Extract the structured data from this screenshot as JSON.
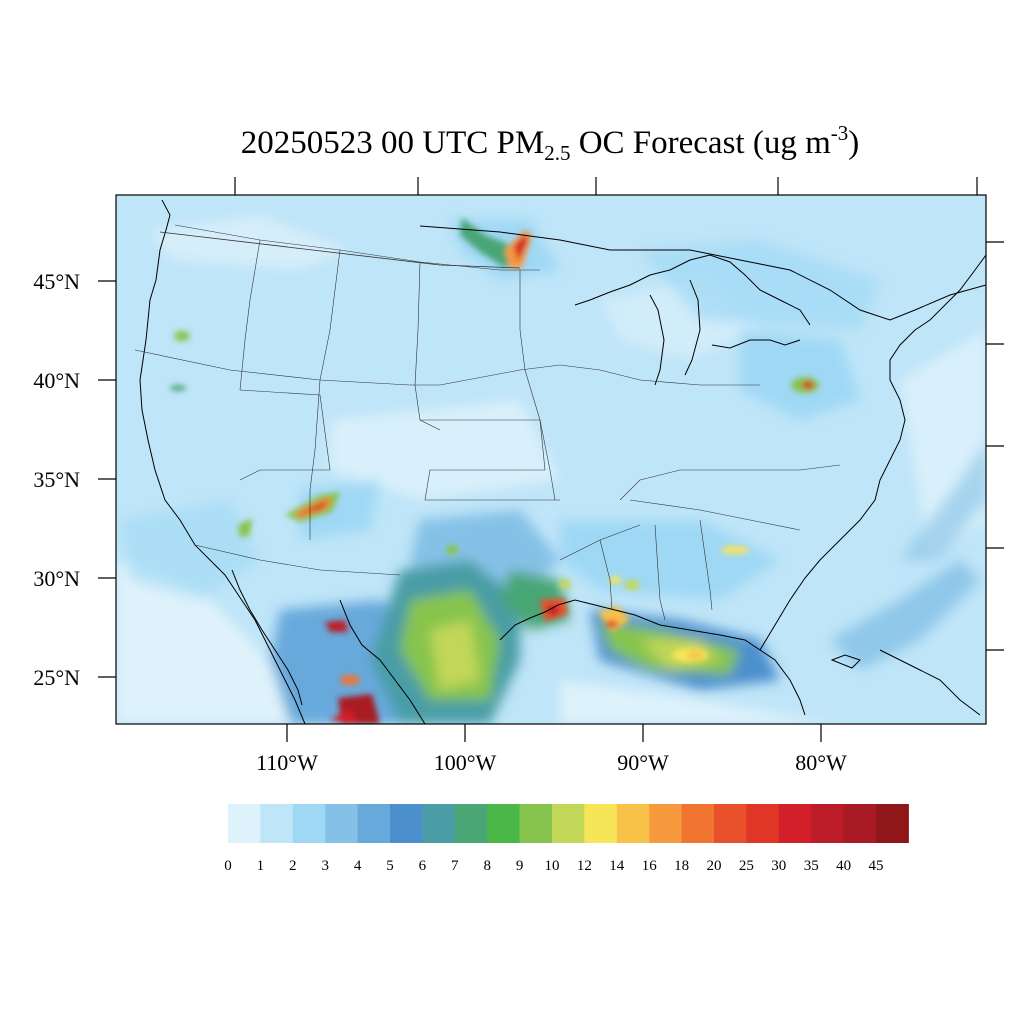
{
  "title": {
    "main_a": "20250523 00 UTC PM",
    "sub": "2.5",
    "main_b": " OC Forecast (ug m",
    "sup": "-3",
    "main_c": ")"
  },
  "lat_labels": [
    "45°N",
    "40°N",
    "35°N",
    "30°N",
    "25°N"
  ],
  "lon_labels": [
    "110°W",
    "100°W",
    "90°W",
    "80°W"
  ],
  "colorbar": {
    "colors": [
      "#def2fb",
      "#bfe5f8",
      "#9fd8f5",
      "#85c1e6",
      "#68a9db",
      "#4b8fcd",
      "#4a9da6",
      "#4aa674",
      "#4cb749",
      "#86c44e",
      "#c2d758",
      "#f7e558",
      "#f8c148",
      "#f79a3d",
      "#f27431",
      "#e8512c",
      "#e03628",
      "#d21f2a",
      "#bc1b28",
      "#a81b24",
      "#901719"
    ],
    "labels": [
      "0",
      "1",
      "2",
      "3",
      "4",
      "5",
      "6",
      "7",
      "8",
      "9",
      "10",
      "12",
      "14",
      "16",
      "18",
      "20",
      "25",
      "30",
      "35",
      "40",
      "45"
    ]
  }
}
